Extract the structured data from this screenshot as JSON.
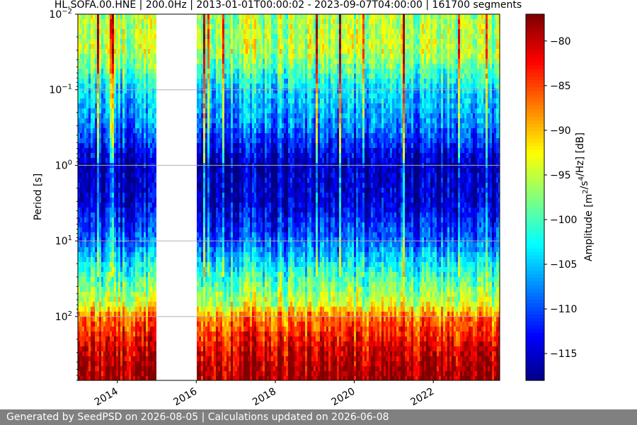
{
  "chart_data": {
    "type": "heatmap",
    "title": "HL.SOFA.00.HNE | 200.0Hz | 2013-01-01T00:00:02 - 2023-09-07T04:00:00 | 161700 segments",
    "ylabel": "Period [s]",
    "xlabel": "",
    "x_range": [
      "2013-01-01",
      "2023-09-07"
    ],
    "x_ticks": [
      "2014",
      "2016",
      "2018",
      "2020",
      "2022"
    ],
    "y_scale": "log",
    "y_inverted": true,
    "y_range": [
      0.01,
      700
    ],
    "y_ticks": [
      "10^-2",
      "10^-1",
      "10^0",
      "10^1",
      "10^2"
    ],
    "data_gap": [
      "2015-01-01",
      "2016-01-01"
    ],
    "colorbar": {
      "label": "Amplitude [m^2/s^4/Hz] [dB]",
      "range": [
        -118,
        -77
      ],
      "ticks": [
        "-80",
        "-85",
        "-90",
        "-95",
        "-100",
        "-105",
        "-110",
        "-115"
      ],
      "colormap": "jet"
    },
    "grid": true,
    "amplitude_profile": [
      {
        "period": 0.01,
        "db": -96
      },
      {
        "period": 0.03,
        "db": -95
      },
      {
        "period": 0.1,
        "db": -104
      },
      {
        "period": 0.3,
        "db": -108
      },
      {
        "period": 0.7,
        "db": -114
      },
      {
        "period": 1,
        "db": -116
      },
      {
        "period": 3,
        "db": -115
      },
      {
        "period": 10,
        "db": -109
      },
      {
        "period": 30,
        "db": -100
      },
      {
        "period": 70,
        "db": -94
      },
      {
        "period": 100,
        "db": -87
      },
      {
        "period": 300,
        "db": -80
      },
      {
        "period": 700,
        "db": -78
      }
    ]
  },
  "footer": {
    "text": "Generated by SeedPSD on 2026-08-05 | Calculations updated on 2026-06-08"
  },
  "colors": {
    "footer_bg": "#808080",
    "grid": "#b0b0b0"
  }
}
